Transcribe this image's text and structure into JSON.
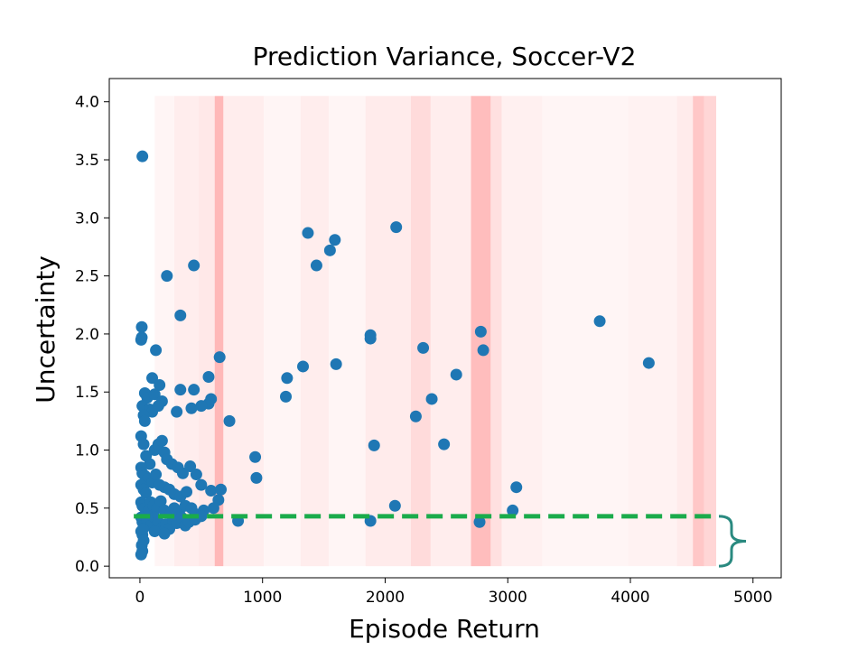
{
  "chart_data": {
    "type": "scatter",
    "title": "Prediction Variance, Soccer-V2",
    "xlabel": "Episode Return",
    "ylabel": "Uncertainty",
    "xlim": [
      -250,
      5230
    ],
    "ylim": [
      -0.1,
      4.2
    ],
    "xticks": [
      0,
      1000,
      2000,
      3000,
      4000,
      5000
    ],
    "yticks": [
      0.0,
      0.5,
      1.0,
      1.5,
      2.0,
      2.5,
      3.0,
      3.5,
      4.0
    ],
    "xtick_labels": [
      "0",
      "1000",
      "2000",
      "3000",
      "4000",
      "5000"
    ],
    "ytick_labels": [
      "0.0",
      "0.5",
      "1.0",
      "1.5",
      "2.0",
      "2.5",
      "3.0",
      "3.5",
      "4.0"
    ],
    "grid": false,
    "marker_color": "#1f77b4",
    "threshold": {
      "y": 0.43,
      "x_range": [
        -50,
        4700
      ],
      "color": "#1aab4b",
      "style": "dashed"
    },
    "brace": {
      "color": "#2a8a80",
      "y_range": [
        0.0,
        0.43
      ]
    },
    "shading": {
      "color": "#ff0000",
      "x_range": [
        0,
        4700
      ],
      "y_range": [
        0.0,
        4.05
      ],
      "bands": [
        {
          "x": 120,
          "w": 160,
          "a": 0.04
        },
        {
          "x": 280,
          "w": 200,
          "a": 0.07
        },
        {
          "x": 480,
          "w": 130,
          "a": 0.09
        },
        {
          "x": 610,
          "w": 70,
          "a": 0.28
        },
        {
          "x": 680,
          "w": 330,
          "a": 0.07
        },
        {
          "x": 1010,
          "w": 300,
          "a": 0.04
        },
        {
          "x": 1310,
          "w": 230,
          "a": 0.07
        },
        {
          "x": 1540,
          "w": 300,
          "a": 0.04
        },
        {
          "x": 1840,
          "w": 370,
          "a": 0.08
        },
        {
          "x": 2210,
          "w": 160,
          "a": 0.14
        },
        {
          "x": 2370,
          "w": 330,
          "a": 0.07
        },
        {
          "x": 2700,
          "w": 160,
          "a": 0.26
        },
        {
          "x": 2860,
          "w": 90,
          "a": 0.12
        },
        {
          "x": 2950,
          "w": 330,
          "a": 0.06
        },
        {
          "x": 3280,
          "w": 700,
          "a": 0.04
        },
        {
          "x": 3980,
          "w": 400,
          "a": 0.05
        },
        {
          "x": 4380,
          "w": 130,
          "a": 0.08
        },
        {
          "x": 4510,
          "w": 90,
          "a": 0.22
        },
        {
          "x": 4600,
          "w": 100,
          "a": 0.16
        }
      ]
    },
    "points": [
      [
        20,
        3.53
      ],
      [
        15,
        2.06
      ],
      [
        15,
        1.97
      ],
      [
        10,
        1.95
      ],
      [
        130,
        1.86
      ],
      [
        220,
        2.5
      ],
      [
        330,
        2.16
      ],
      [
        440,
        2.59
      ],
      [
        650,
        1.8
      ],
      [
        100,
        1.62
      ],
      [
        160,
        1.56
      ],
      [
        40,
        1.49
      ],
      [
        60,
        1.45
      ],
      [
        120,
        1.48
      ],
      [
        180,
        1.42
      ],
      [
        20,
        1.38
      ],
      [
        80,
        1.35
      ],
      [
        100,
        1.33
      ],
      [
        30,
        1.3
      ],
      [
        40,
        1.25
      ],
      [
        150,
        1.38
      ],
      [
        330,
        1.52
      ],
      [
        440,
        1.52
      ],
      [
        560,
        1.63
      ],
      [
        560,
        1.4
      ],
      [
        500,
        1.38
      ],
      [
        420,
        1.36
      ],
      [
        300,
        1.33
      ],
      [
        580,
        1.44
      ],
      [
        730,
        1.25
      ],
      [
        10,
        1.12
      ],
      [
        30,
        1.05
      ],
      [
        50,
        0.95
      ],
      [
        80,
        0.88
      ],
      [
        120,
        1.0
      ],
      [
        150,
        1.05
      ],
      [
        180,
        1.08
      ],
      [
        200,
        0.98
      ],
      [
        220,
        0.92
      ],
      [
        260,
        0.88
      ],
      [
        310,
        0.85
      ],
      [
        350,
        0.8
      ],
      [
        410,
        0.86
      ],
      [
        460,
        0.79
      ],
      [
        500,
        0.7
      ],
      [
        580,
        0.65
      ],
      [
        660,
        0.66
      ],
      [
        10,
        0.85
      ],
      [
        20,
        0.8
      ],
      [
        40,
        0.78
      ],
      [
        60,
        0.75
      ],
      [
        100,
        0.72
      ],
      [
        130,
        0.79
      ],
      [
        160,
        0.7
      ],
      [
        200,
        0.68
      ],
      [
        240,
        0.66
      ],
      [
        280,
        0.62
      ],
      [
        330,
        0.6
      ],
      [
        380,
        0.64
      ],
      [
        10,
        0.7
      ],
      [
        30,
        0.66
      ],
      [
        50,
        0.63
      ],
      [
        10,
        0.55
      ],
      [
        20,
        0.52
      ],
      [
        40,
        0.5
      ],
      [
        70,
        0.48
      ],
      [
        90,
        0.55
      ],
      [
        110,
        0.52
      ],
      [
        140,
        0.5
      ],
      [
        170,
        0.56
      ],
      [
        200,
        0.48
      ],
      [
        250,
        0.45
      ],
      [
        280,
        0.5
      ],
      [
        320,
        0.47
      ],
      [
        370,
        0.52
      ],
      [
        420,
        0.5
      ],
      [
        450,
        0.45
      ],
      [
        520,
        0.48
      ],
      [
        640,
        0.57
      ],
      [
        600,
        0.5
      ],
      [
        10,
        0.42
      ],
      [
        20,
        0.38
      ],
      [
        40,
        0.36
      ],
      [
        60,
        0.4
      ],
      [
        90,
        0.35
      ],
      [
        120,
        0.42
      ],
      [
        150,
        0.38
      ],
      [
        180,
        0.33
      ],
      [
        210,
        0.36
      ],
      [
        240,
        0.32
      ],
      [
        270,
        0.4
      ],
      [
        300,
        0.37
      ],
      [
        340,
        0.42
      ],
      [
        370,
        0.35
      ],
      [
        400,
        0.38
      ],
      [
        450,
        0.4
      ],
      [
        10,
        0.3
      ],
      [
        20,
        0.27
      ],
      [
        30,
        0.22
      ],
      [
        15,
        0.18
      ],
      [
        20,
        0.13
      ],
      [
        10,
        0.1
      ],
      [
        25,
        0.32
      ],
      [
        120,
        0.3
      ],
      [
        200,
        0.28
      ],
      [
        500,
        0.43
      ],
      [
        800,
        0.39
      ],
      [
        950,
        0.76
      ],
      [
        940,
        0.94
      ],
      [
        1190,
        1.46
      ],
      [
        1200,
        1.62
      ],
      [
        1330,
        1.72
      ],
      [
        1370,
        2.87
      ],
      [
        1440,
        2.59
      ],
      [
        1550,
        2.72
      ],
      [
        1590,
        2.81
      ],
      [
        1600,
        1.74
      ],
      [
        1880,
        1.99
      ],
      [
        1880,
        1.96
      ],
      [
        1880,
        0.39
      ],
      [
        1910,
        1.04
      ],
      [
        2080,
        0.52
      ],
      [
        2090,
        2.92
      ],
      [
        2250,
        1.29
      ],
      [
        2310,
        1.88
      ],
      [
        2380,
        1.44
      ],
      [
        2480,
        1.05
      ],
      [
        2580,
        1.65
      ],
      [
        2780,
        2.02
      ],
      [
        2800,
        1.86
      ],
      [
        2770,
        0.38
      ],
      [
        3040,
        0.48
      ],
      [
        3070,
        0.68
      ],
      [
        3750,
        2.11
      ],
      [
        4150,
        1.75
      ]
    ]
  }
}
